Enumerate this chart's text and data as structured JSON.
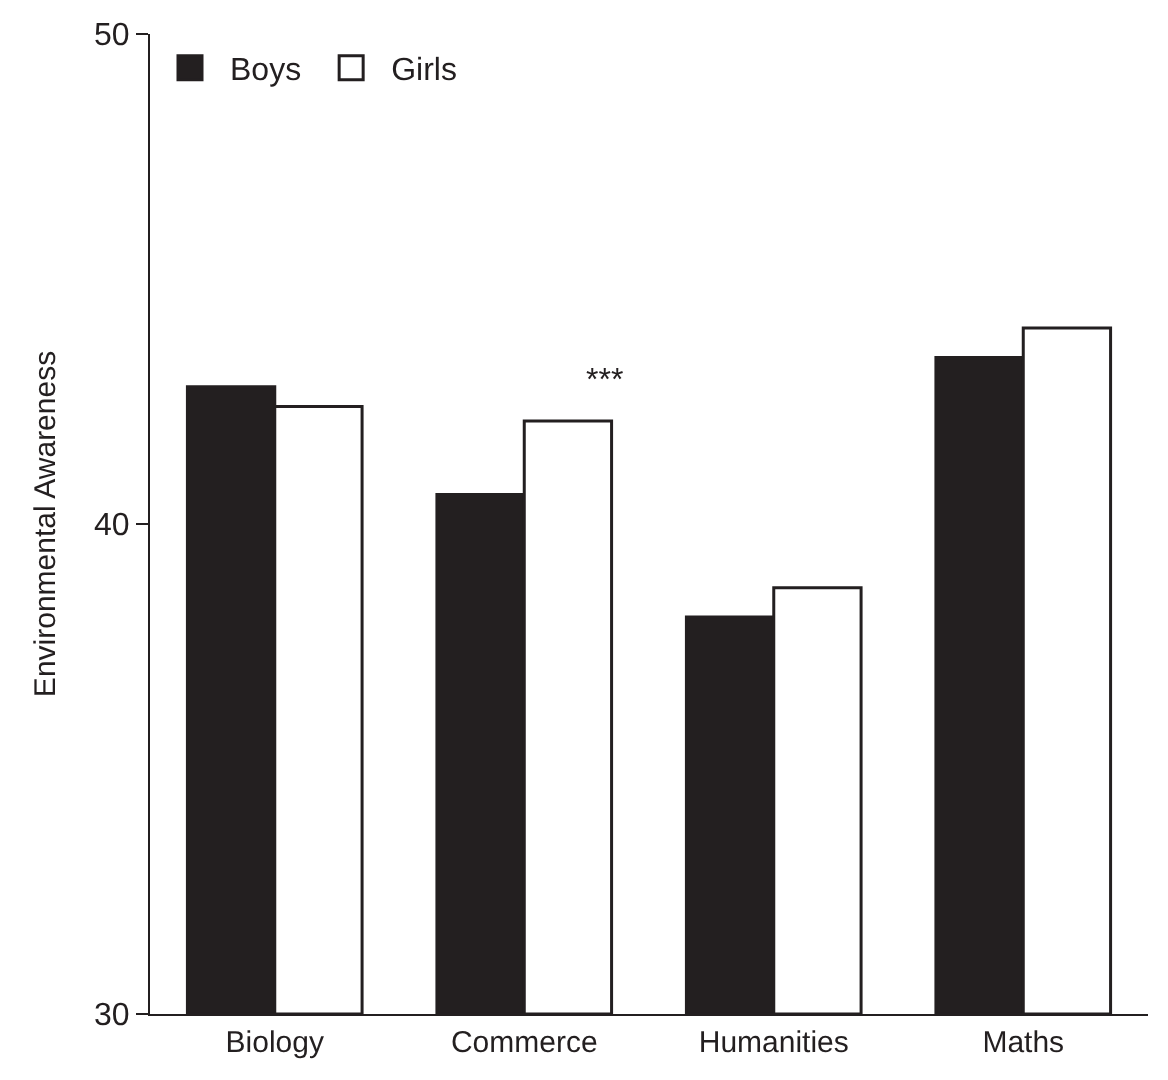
{
  "chart_data": {
    "type": "bar",
    "ylabel": "Environmental Awareness",
    "categories": [
      "Biology",
      "Commerce",
      "Humanities",
      "Maths"
    ],
    "series": [
      {
        "name": "Boys",
        "color": "#231f20",
        "values": [
          42.8,
          40.6,
          38.1,
          43.4
        ]
      },
      {
        "name": "Girls",
        "color": "#ffffff",
        "values": [
          42.4,
          42.1,
          38.7,
          44.0
        ]
      }
    ],
    "ylim": [
      30,
      50
    ],
    "yticks": [
      30,
      40,
      50
    ],
    "legend": "top left",
    "annotations": [
      "***"
    ]
  }
}
